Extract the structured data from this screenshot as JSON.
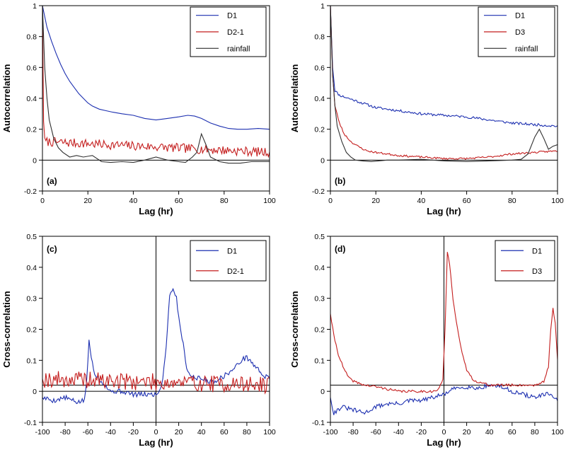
{
  "chart_data": [
    {
      "id": "a",
      "type": "line",
      "tag": "(a)",
      "xlabel": "Lag (hr)",
      "ylabel": "Autocorrelation",
      "xlim": [
        0,
        100
      ],
      "ylim": [
        -0.2,
        1
      ],
      "xticks": [
        0,
        20,
        40,
        60,
        80,
        100
      ],
      "yticks": [
        -0.2,
        0,
        0.2,
        0.4,
        0.6,
        0.8,
        1
      ],
      "yticklabels": [
        "-0.2",
        "0",
        "0.2",
        "0.4",
        "0.6",
        "0.8",
        "1"
      ],
      "hlines": [
        0
      ],
      "vlines": [],
      "legend_position": "top-right",
      "series": [
        {
          "name": "D1",
          "color": "#1c2fb0",
          "style": "smooth",
          "points": [
            [
              0,
              1
            ],
            [
              1,
              0.93
            ],
            [
              2,
              0.86
            ],
            [
              4,
              0.77
            ],
            [
              6,
              0.69
            ],
            [
              8,
              0.62
            ],
            [
              10,
              0.56
            ],
            [
              12,
              0.51
            ],
            [
              14,
              0.47
            ],
            [
              16,
              0.43
            ],
            [
              18,
              0.4
            ],
            [
              20,
              0.37
            ],
            [
              22,
              0.35
            ],
            [
              25,
              0.33
            ],
            [
              28,
              0.32
            ],
            [
              31,
              0.31
            ],
            [
              35,
              0.3
            ],
            [
              40,
              0.29
            ],
            [
              45,
              0.27
            ],
            [
              50,
              0.26
            ],
            [
              55,
              0.27
            ],
            [
              60,
              0.28
            ],
            [
              64,
              0.29
            ],
            [
              67,
              0.285
            ],
            [
              70,
              0.27
            ],
            [
              74,
              0.24
            ],
            [
              78,
              0.22
            ],
            [
              82,
              0.205
            ],
            [
              86,
              0.2
            ],
            [
              90,
              0.2
            ],
            [
              95,
              0.205
            ],
            [
              100,
              0.2
            ]
          ]
        },
        {
          "name": "D2-1",
          "color": "#c41e1e",
          "style": "noisy",
          "points": [
            [
              0,
              1
            ],
            [
              0.6,
              0.12
            ],
            [
              100,
              0.05
            ]
          ],
          "noise": 0.03,
          "seed": 7
        },
        {
          "name": "rainfall",
          "color": "#303030",
          "style": "smooth",
          "points": [
            [
              0,
              1
            ],
            [
              1,
              0.6
            ],
            [
              2,
              0.4
            ],
            [
              3,
              0.26
            ],
            [
              5,
              0.14
            ],
            [
              7,
              0.08
            ],
            [
              9,
              0.05
            ],
            [
              12,
              0.02
            ],
            [
              15,
              0.03
            ],
            [
              18,
              0.02
            ],
            [
              22,
              0.03
            ],
            [
              26,
              -0.01
            ],
            [
              30,
              -0.015
            ],
            [
              35,
              -0.01
            ],
            [
              40,
              -0.015
            ],
            [
              45,
              0.0
            ],
            [
              50,
              0.02
            ],
            [
              55,
              0.0
            ],
            [
              60,
              -0.01
            ],
            [
              63,
              -0.015
            ],
            [
              66,
              0.02
            ],
            [
              68,
              0.05
            ],
            [
              70,
              0.17
            ],
            [
              72,
              0.1
            ],
            [
              74,
              0.02
            ],
            [
              78,
              -0.01
            ],
            [
              82,
              -0.02
            ],
            [
              87,
              -0.02
            ],
            [
              92,
              -0.01
            ],
            [
              96,
              -0.01
            ],
            [
              100,
              -0.01
            ]
          ]
        }
      ]
    },
    {
      "id": "b",
      "type": "line",
      "tag": "(b)",
      "xlabel": "Lag (hr)",
      "ylabel": "Autocorrelation",
      "xlim": [
        0,
        100
      ],
      "ylim": [
        -0.2,
        1
      ],
      "xticks": [
        0,
        20,
        40,
        60,
        80,
        100
      ],
      "yticks": [
        -0.2,
        0,
        0.2,
        0.4,
        0.6,
        0.8,
        1
      ],
      "yticklabels": [
        "-0.2",
        "0",
        "0.2",
        "0.4",
        "0.6",
        "0.8",
        "1"
      ],
      "hlines": [
        0
      ],
      "vlines": [],
      "legend_position": "top-right",
      "series": [
        {
          "name": "D1",
          "color": "#1c2fb0",
          "style": "noisy",
          "points": [
            [
              0,
              1
            ],
            [
              1,
              0.6
            ],
            [
              2,
              0.45
            ],
            [
              4,
              0.42
            ],
            [
              8,
              0.4
            ],
            [
              12,
              0.38
            ],
            [
              20,
              0.34
            ],
            [
              30,
              0.32
            ],
            [
              40,
              0.3
            ],
            [
              50,
              0.29
            ],
            [
              60,
              0.28
            ],
            [
              70,
              0.26
            ],
            [
              80,
              0.24
            ],
            [
              90,
              0.23
            ],
            [
              100,
              0.22
            ]
          ],
          "noise": 0.008,
          "seed": 11
        },
        {
          "name": "D3",
          "color": "#c41e1e",
          "style": "noisy",
          "points": [
            [
              0,
              1
            ],
            [
              1,
              0.55
            ],
            [
              2,
              0.35
            ],
            [
              4,
              0.24
            ],
            [
              6,
              0.17
            ],
            [
              9,
              0.12
            ],
            [
              12,
              0.09
            ],
            [
              16,
              0.06
            ],
            [
              20,
              0.05
            ],
            [
              30,
              0.03
            ],
            [
              40,
              0.02
            ],
            [
              50,
              0.01
            ],
            [
              60,
              0.01
            ],
            [
              70,
              0.02
            ],
            [
              80,
              0.04
            ],
            [
              90,
              0.05
            ],
            [
              100,
              0.06
            ]
          ],
          "noise": 0.006,
          "seed": 23
        },
        {
          "name": "rainfall",
          "color": "#303030",
          "style": "smooth",
          "points": [
            [
              0,
              1
            ],
            [
              1,
              0.55
            ],
            [
              2,
              0.35
            ],
            [
              3,
              0.22
            ],
            [
              5,
              0.12
            ],
            [
              7,
              0.05
            ],
            [
              9,
              0.02
            ],
            [
              11,
              0.0
            ],
            [
              14,
              -0.005
            ],
            [
              18,
              -0.01
            ],
            [
              25,
              0.0
            ],
            [
              30,
              0.0
            ],
            [
              40,
              0.005
            ],
            [
              50,
              -0.005
            ],
            [
              60,
              -0.01
            ],
            [
              70,
              -0.005
            ],
            [
              80,
              0.0
            ],
            [
              84,
              0.005
            ],
            [
              87,
              0.04
            ],
            [
              90,
              0.15
            ],
            [
              92,
              0.2
            ],
            [
              94,
              0.14
            ],
            [
              96,
              0.07
            ],
            [
              98,
              0.09
            ],
            [
              100,
              0.1
            ]
          ]
        }
      ]
    },
    {
      "id": "c",
      "type": "line",
      "tag": "(c)",
      "xlabel": "Lag (hr)",
      "ylabel": "Cross-correlation",
      "xlim": [
        -100,
        100
      ],
      "ylim": [
        -0.1,
        0.5
      ],
      "xticks": [
        -100,
        -80,
        -60,
        -40,
        -20,
        0,
        20,
        40,
        60,
        80,
        100
      ],
      "yticks": [
        -0.1,
        0,
        0.1,
        0.2,
        0.3,
        0.4,
        0.5
      ],
      "yticklabels": [
        "-0.1",
        "0",
        "0.1",
        "0.2",
        "0.3",
        "0.4",
        "0.5"
      ],
      "hlines": [
        0,
        0.02
      ],
      "vlines": [
        0
      ],
      "legend_position": "top-right",
      "series": [
        {
          "name": "D1",
          "color": "#1c2fb0",
          "style": "noisy",
          "points": [
            [
              -100,
              -0.02
            ],
            [
              -90,
              -0.03
            ],
            [
              -80,
              -0.02
            ],
            [
              -70,
              -0.035
            ],
            [
              -63,
              -0.03
            ],
            [
              -61,
              0.04
            ],
            [
              -59,
              0.16
            ],
            [
              -57,
              0.11
            ],
            [
              -54,
              0.06
            ],
            [
              -50,
              0.04
            ],
            [
              -45,
              0.02
            ],
            [
              -40,
              0.0
            ],
            [
              -30,
              0.0
            ],
            [
              -20,
              -0.01
            ],
            [
              -10,
              -0.01
            ],
            [
              0,
              -0.01
            ],
            [
              3,
              0.0
            ],
            [
              6,
              0.04
            ],
            [
              9,
              0.15
            ],
            [
              12,
              0.31
            ],
            [
              15,
              0.335
            ],
            [
              18,
              0.3
            ],
            [
              20,
              0.24
            ],
            [
              24,
              0.15
            ],
            [
              27,
              0.08
            ],
            [
              30,
              0.05
            ],
            [
              40,
              0.04
            ],
            [
              50,
              0.03
            ],
            [
              60,
              0.05
            ],
            [
              68,
              0.07
            ],
            [
              75,
              0.1
            ],
            [
              80,
              0.11
            ],
            [
              85,
              0.09
            ],
            [
              90,
              0.07
            ],
            [
              95,
              0.05
            ],
            [
              100,
              0.04
            ]
          ],
          "noise": 0.008,
          "seed": 5
        },
        {
          "name": "D2-1",
          "color": "#c41e1e",
          "style": "noisy",
          "points": [
            [
              -100,
              0.04
            ],
            [
              100,
              0.02
            ]
          ],
          "noise": 0.028,
          "seed": 19
        }
      ]
    },
    {
      "id": "d",
      "type": "line",
      "tag": "(d)",
      "xlabel": "Lag (hr)",
      "ylabel": "Cross-correlation",
      "xlim": [
        -100,
        100
      ],
      "ylim": [
        -0.1,
        0.5
      ],
      "xticks": [
        -100,
        -80,
        -60,
        -40,
        -20,
        0,
        20,
        40,
        60,
        80,
        100
      ],
      "yticks": [
        -0.1,
        0,
        0.1,
        0.2,
        0.3,
        0.4,
        0.5
      ],
      "yticklabels": [
        "-0.1",
        "0",
        "0.1",
        "0.2",
        "0.3",
        "0.4",
        "0.5"
      ],
      "hlines": [
        0.02
      ],
      "vlines": [
        0
      ],
      "legend_position": "top-right",
      "series": [
        {
          "name": "D1",
          "color": "#1c2fb0",
          "style": "noisy",
          "points": [
            [
              -100,
              -0.02
            ],
            [
              -97,
              -0.07
            ],
            [
              -90,
              -0.05
            ],
            [
              -80,
              -0.06
            ],
            [
              -70,
              -0.07
            ],
            [
              -60,
              -0.05
            ],
            [
              -50,
              -0.04
            ],
            [
              -40,
              -0.04
            ],
            [
              -30,
              -0.03
            ],
            [
              -20,
              -0.03
            ],
            [
              -10,
              -0.02
            ],
            [
              0,
              -0.01
            ],
            [
              10,
              0.01
            ],
            [
              20,
              0.015
            ],
            [
              30,
              0.01
            ],
            [
              40,
              0.02
            ],
            [
              50,
              0.015
            ],
            [
              60,
              0.0
            ],
            [
              70,
              -0.01
            ],
            [
              80,
              -0.02
            ],
            [
              90,
              -0.01
            ],
            [
              95,
              -0.01
            ],
            [
              100,
              -0.03
            ]
          ],
          "noise": 0.007,
          "seed": 31
        },
        {
          "name": "D3",
          "color": "#c41e1e",
          "style": "noisy",
          "points": [
            [
              -100,
              0.25
            ],
            [
              -97,
              0.18
            ],
            [
              -93,
              0.12
            ],
            [
              -88,
              0.07
            ],
            [
              -83,
              0.04
            ],
            [
              -78,
              0.03
            ],
            [
              -70,
              0.02
            ],
            [
              -60,
              0.015
            ],
            [
              -40,
              0.0
            ],
            [
              -20,
              0.0
            ],
            [
              -8,
              0.0
            ],
            [
              -4,
              0.01
            ],
            [
              -1,
              0.04
            ],
            [
              1,
              0.2
            ],
            [
              3,
              0.45
            ],
            [
              5,
              0.41
            ],
            [
              8,
              0.3
            ],
            [
              12,
              0.2
            ],
            [
              16,
              0.12
            ],
            [
              20,
              0.07
            ],
            [
              25,
              0.04
            ],
            [
              30,
              0.03
            ],
            [
              40,
              0.02
            ],
            [
              60,
              0.02
            ],
            [
              80,
              0.02
            ],
            [
              88,
              0.03
            ],
            [
              92,
              0.08
            ],
            [
              94,
              0.2
            ],
            [
              96,
              0.27
            ],
            [
              98,
              0.22
            ],
            [
              100,
              0.1
            ]
          ],
          "noise": 0.004,
          "seed": 41
        }
      ]
    }
  ]
}
